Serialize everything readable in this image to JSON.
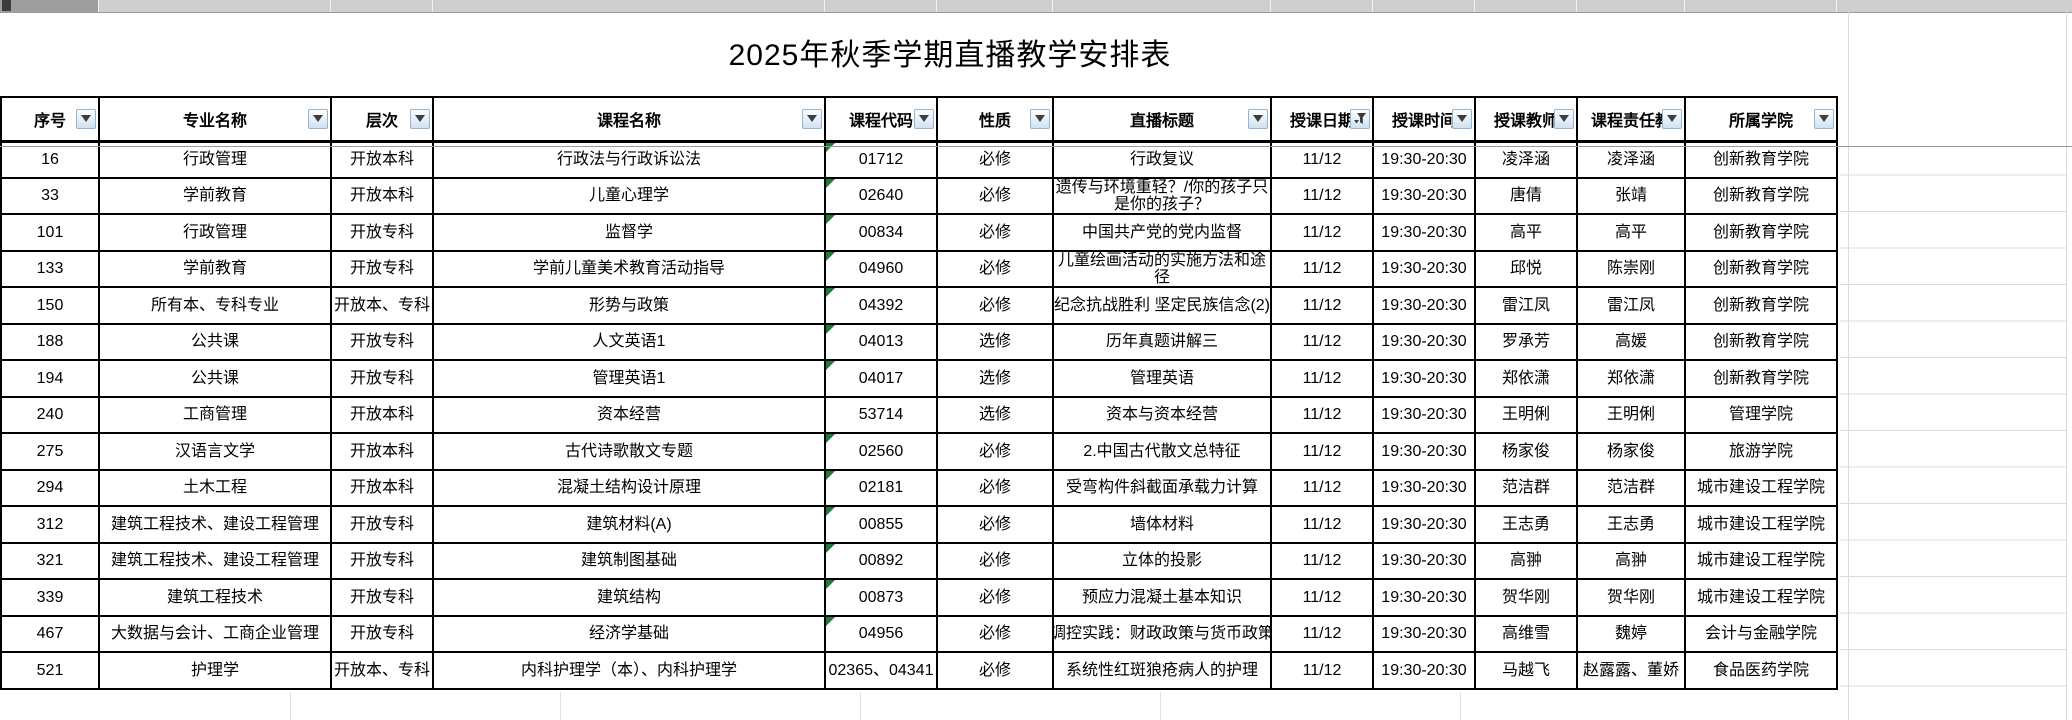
{
  "title": "2025年秋季学期直播教学安排表",
  "columns": [
    {
      "label": "序号",
      "icon": "dropdown-arrow-icon"
    },
    {
      "label": "专业名称",
      "icon": "dropdown-arrow-icon"
    },
    {
      "label": "层次",
      "icon": "dropdown-arrow-icon"
    },
    {
      "label": "课程名称",
      "icon": "dropdown-arrow-icon"
    },
    {
      "label": "课程代码",
      "icon": "dropdown-arrow-icon"
    },
    {
      "label": "性质",
      "icon": "dropdown-arrow-icon"
    },
    {
      "label": "直播标题",
      "icon": "dropdown-arrow-icon"
    },
    {
      "label": "授课日期",
      "icon": "funnel-filter-icon",
      "filter_active": true
    },
    {
      "label": "授课时间",
      "icon": "dropdown-arrow-icon"
    },
    {
      "label": "授课教师",
      "icon": "dropdown-arrow-icon"
    },
    {
      "label": "课程责任教",
      "icon": "dropdown-arrow-icon"
    },
    {
      "label": "所属学院",
      "icon": "dropdown-arrow-icon"
    }
  ],
  "rows": [
    {
      "seq": "16",
      "major": "行政管理",
      "level": "开放本科",
      "course": "行政法与行政诉讼法",
      "code": "01712",
      "code_flag": true,
      "nature": "必修",
      "live_title": "行政复议",
      "date": "11/12",
      "time": "19:30-20:30",
      "teacher": "凌泽涵",
      "owner": "凌泽涵",
      "college": "创新教育学院"
    },
    {
      "seq": "33",
      "major": "学前教育",
      "level": "开放本科",
      "course": "儿童心理学",
      "code": "02640",
      "code_flag": true,
      "nature": "必修",
      "live_title": "遗传与环境重轻？/你的孩子只是你的孩子？",
      "date": "11/12",
      "time": "19:30-20:30",
      "teacher": "唐倩",
      "owner": "张靖",
      "college": "创新教育学院"
    },
    {
      "seq": "101",
      "major": "行政管理",
      "level": "开放专科",
      "course": "监督学",
      "code": "00834",
      "code_flag": true,
      "nature": "必修",
      "live_title": "中国共产党的党内监督",
      "date": "11/12",
      "time": "19:30-20:30",
      "teacher": "高平",
      "owner": "高平",
      "college": "创新教育学院"
    },
    {
      "seq": "133",
      "major": "学前教育",
      "level": "开放专科",
      "course": "学前儿童美术教育活动指导",
      "code": "04960",
      "code_flag": true,
      "nature": "必修",
      "live_title": "儿童绘画活动的实施方法和途径",
      "date": "11/12",
      "time": "19:30-20:30",
      "teacher": "邱悦",
      "owner": "陈崇刚",
      "college": "创新教育学院"
    },
    {
      "seq": "150",
      "major": "所有本、专科专业",
      "level": "开放本、专科",
      "course": "形势与政策",
      "code": "04392",
      "code_flag": true,
      "nature": "必修",
      "live_title": "纪念抗战胜利 坚定民族信念(2)",
      "date": "11/12",
      "time": "19:30-20:30",
      "teacher": "雷江凤",
      "owner": "雷江凤",
      "college": "创新教育学院"
    },
    {
      "seq": "188",
      "major": "公共课",
      "level": "开放专科",
      "course": "人文英语1",
      "code": "04013",
      "code_flag": true,
      "nature": "选修",
      "live_title": "历年真题讲解三",
      "date": "11/12",
      "time": "19:30-20:30",
      "teacher": "罗承芳",
      "owner": "高媛",
      "college": "创新教育学院"
    },
    {
      "seq": "194",
      "major": "公共课",
      "level": "开放专科",
      "course": "管理英语1",
      "code": "04017",
      "code_flag": true,
      "nature": "选修",
      "live_title": "管理英语",
      "date": "11/12",
      "time": "19:30-20:30",
      "teacher": "郑依潇",
      "owner": "郑依潇",
      "college": "创新教育学院"
    },
    {
      "seq": "240",
      "major": "工商管理",
      "level": "开放本科",
      "course": "资本经营",
      "code": "53714",
      "code_flag": false,
      "nature": "选修",
      "live_title": "资本与资本经营",
      "date": "11/12",
      "time": "19:30-20:30",
      "teacher": "王明俐",
      "owner": "王明俐",
      "college": "管理学院"
    },
    {
      "seq": "275",
      "major": "汉语言文学",
      "level": "开放本科",
      "course": "古代诗歌散文专题",
      "code": "02560",
      "code_flag": true,
      "nature": "必修",
      "live_title": "2.中国古代散文总特征",
      "date": "11/12",
      "time": "19:30-20:30",
      "teacher": "杨家俊",
      "owner": "杨家俊",
      "college": "旅游学院"
    },
    {
      "seq": "294",
      "major": "土木工程",
      "level": "开放本科",
      "course": "混凝土结构设计原理",
      "code": "02181",
      "code_flag": true,
      "nature": "必修",
      "live_title": "受弯构件斜截面承载力计算",
      "date": "11/12",
      "time": "19:30-20:30",
      "teacher": "范洁群",
      "owner": "范洁群",
      "college": "城市建设工程学院"
    },
    {
      "seq": "312",
      "major": "建筑工程技术、建设工程管理",
      "level": "开放专科",
      "course": "建筑材料(A)",
      "code": "00855",
      "code_flag": true,
      "nature": "必修",
      "live_title": "墙体材料",
      "date": "11/12",
      "time": "19:30-20:30",
      "teacher": "王志勇",
      "owner": "王志勇",
      "college": "城市建设工程学院"
    },
    {
      "seq": "321",
      "major": "建筑工程技术、建设工程管理",
      "level": "开放专科",
      "course": "建筑制图基础",
      "code": "00892",
      "code_flag": true,
      "nature": "必修",
      "live_title": "立体的投影",
      "date": "11/12",
      "time": "19:30-20:30",
      "teacher": "高翀",
      "owner": "高翀",
      "college": "城市建设工程学院"
    },
    {
      "seq": "339",
      "major": "建筑工程技术",
      "level": "开放专科",
      "course": "建筑结构",
      "code": "00873",
      "code_flag": true,
      "nature": "必修",
      "live_title": "预应力混凝土基本知识",
      "date": "11/12",
      "time": "19:30-20:30",
      "teacher": "贺华刚",
      "owner": "贺华刚",
      "college": "城市建设工程学院"
    },
    {
      "seq": "467",
      "major": "大数据与会计、工商企业管理",
      "level": "开放专科",
      "course": "经济学基础",
      "code": "04956",
      "code_flag": true,
      "nature": "必修",
      "live_title": "调控实践：财政政策与货币政策",
      "clip": true,
      "date": "11/12",
      "time": "19:30-20:30",
      "teacher": "高维雪",
      "owner": "魏婷",
      "college": "会计与金融学院"
    },
    {
      "seq": "521",
      "major": "护理学",
      "level": "开放本、专科",
      "course": "内科护理学（本）、内科护理学",
      "code": "02365、04341",
      "code_flag": false,
      "nature": "必修",
      "live_title": "系统性红斑狼疮病人的护理",
      "date": "11/12",
      "time": "19:30-20:30",
      "teacher": "马越飞",
      "owner": "赵露露、董娇",
      "college": "食品医药学院"
    }
  ],
  "colors": {
    "code_flag_marker": "#217a36",
    "filter_button_border": "#94b4d2",
    "filter_button_fill": "#cfe1f1",
    "grid_border": "#000000"
  }
}
